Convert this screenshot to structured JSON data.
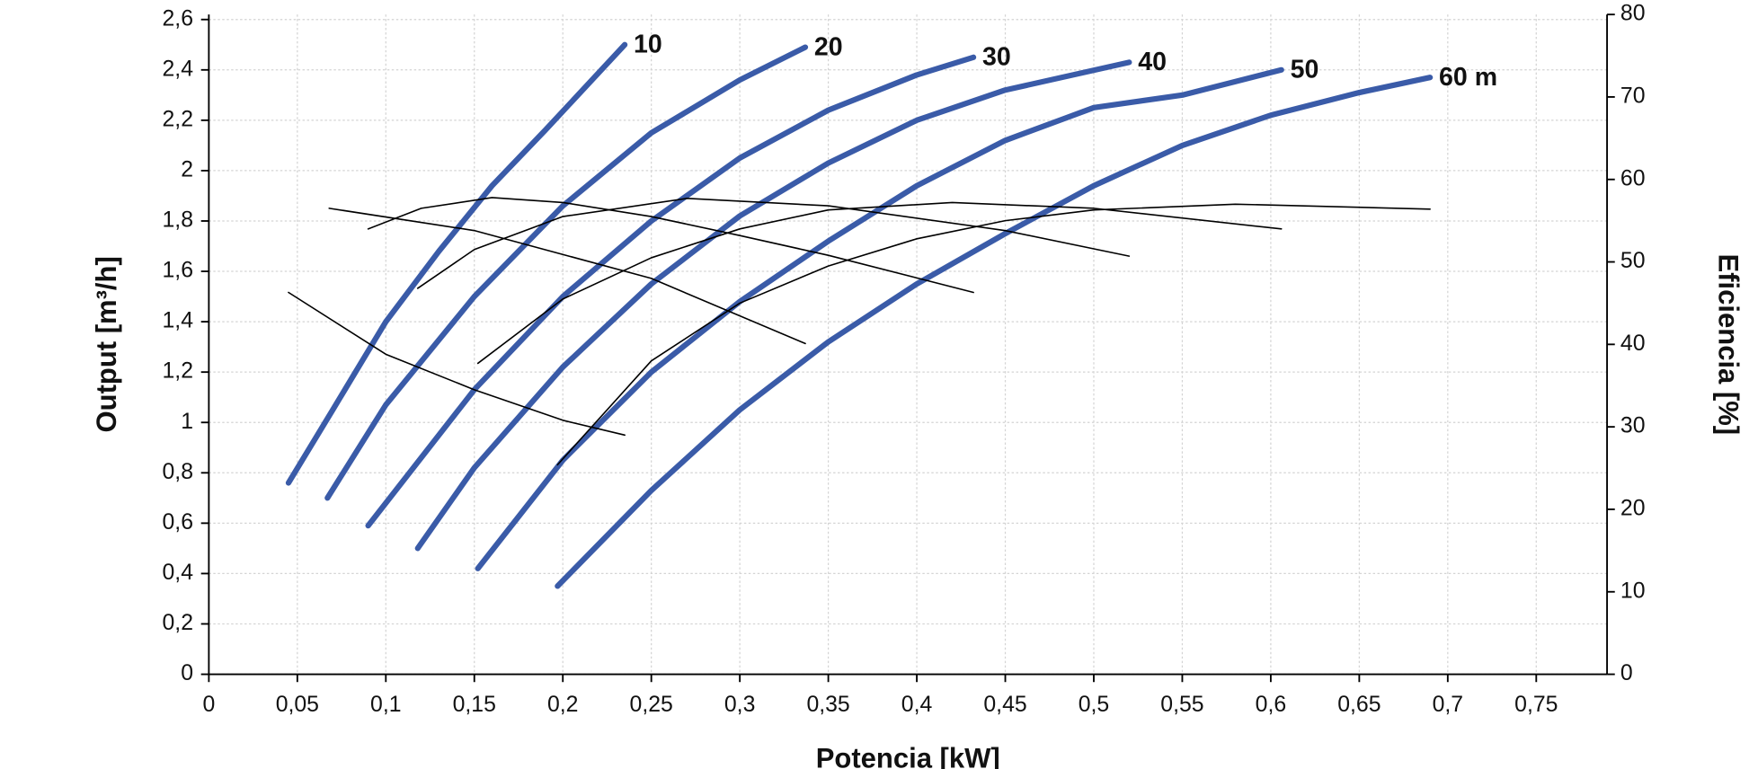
{
  "chart_data": {
    "type": "line",
    "xlabel": "Potencia [kW]",
    "ylabel": "Output [m³/h]",
    "y2label": "Eficiencia [%]",
    "xlim": [
      0,
      0.79
    ],
    "ylim": [
      0,
      2.62
    ],
    "y2lim": [
      0,
      80
    ],
    "grid": true,
    "xticks": [
      0,
      {
        "value": 0.05,
        "label": "0,05"
      },
      {
        "value": 0.1,
        "label": "0,1"
      },
      {
        "value": 0.15,
        "label": "0,15"
      },
      {
        "value": 0.2,
        "label": "0,2"
      },
      {
        "value": 0.25,
        "label": "0,25"
      },
      {
        "value": 0.3,
        "label": "0,3"
      },
      {
        "value": 0.35,
        "label": "0,35"
      },
      {
        "value": 0.4,
        "label": "0,4"
      },
      {
        "value": 0.45,
        "label": "0,45"
      },
      {
        "value": 0.5,
        "label": "0,5"
      },
      {
        "value": 0.55,
        "label": "0,55"
      },
      {
        "value": 0.6,
        "label": "0,6"
      },
      {
        "value": 0.65,
        "label": "0,65"
      },
      {
        "value": 0.7,
        "label": "0,7"
      },
      {
        "value": 0.75,
        "label": "0,75"
      }
    ],
    "yticks": [
      0,
      {
        "value": 0.2,
        "label": "0,2"
      },
      {
        "value": 0.4,
        "label": "0,4"
      },
      {
        "value": 0.6,
        "label": "0,6"
      },
      {
        "value": 0.8,
        "label": "0,8"
      },
      1,
      {
        "value": 1.2,
        "label": "1,2"
      },
      {
        "value": 1.4,
        "label": "1,4"
      },
      {
        "value": 1.6,
        "label": "1,6"
      },
      {
        "value": 1.8,
        "label": "1,8"
      },
      2,
      {
        "value": 2.2,
        "label": "2,2"
      },
      {
        "value": 2.4,
        "label": "2,4"
      },
      {
        "value": 2.6,
        "label": "2,6"
      }
    ],
    "y2ticks": [
      0,
      10,
      20,
      30,
      40,
      50,
      60,
      70,
      80
    ],
    "series": [
      {
        "name": "10",
        "color": "#3a5ba8",
        "x": [
          0.045,
          0.07,
          0.1,
          0.13,
          0.16,
          0.19,
          0.235
        ],
        "values": [
          0.76,
          1.05,
          1.4,
          1.68,
          1.94,
          2.16,
          2.5
        ]
      },
      {
        "name": "20",
        "color": "#3a5ba8",
        "x": [
          0.067,
          0.1,
          0.15,
          0.2,
          0.25,
          0.3,
          0.337
        ],
        "values": [
          0.7,
          1.07,
          1.5,
          1.86,
          2.15,
          2.36,
          2.49
        ]
      },
      {
        "name": "30",
        "color": "#3a5ba8",
        "x": [
          0.09,
          0.15,
          0.2,
          0.25,
          0.3,
          0.35,
          0.4,
          0.432
        ],
        "values": [
          0.59,
          1.13,
          1.5,
          1.8,
          2.05,
          2.24,
          2.38,
          2.45
        ]
      },
      {
        "name": "40",
        "color": "#3a5ba8",
        "x": [
          0.118,
          0.15,
          0.2,
          0.25,
          0.3,
          0.35,
          0.4,
          0.45,
          0.52
        ],
        "values": [
          0.5,
          0.82,
          1.22,
          1.55,
          1.82,
          2.03,
          2.2,
          2.32,
          2.43
        ]
      },
      {
        "name": "50",
        "color": "#3a5ba8",
        "x": [
          0.152,
          0.2,
          0.25,
          0.3,
          0.35,
          0.4,
          0.45,
          0.5,
          0.55,
          0.606
        ],
        "values": [
          0.42,
          0.85,
          1.2,
          1.48,
          1.72,
          1.94,
          2.12,
          2.25,
          2.3,
          2.4
        ]
      },
      {
        "name": "60 m",
        "color": "#3a5ba8",
        "x": [
          0.197,
          0.25,
          0.3,
          0.35,
          0.4,
          0.45,
          0.5,
          0.55,
          0.6,
          0.65,
          0.69
        ],
        "values": [
          0.35,
          0.73,
          1.05,
          1.32,
          1.55,
          1.75,
          1.94,
          2.1,
          2.22,
          2.31,
          2.37
        ]
      },
      {
        "axis": "y2",
        "color": "#000000",
        "x": [
          0.045,
          0.1,
          0.15,
          0.2,
          0.235
        ],
        "values": [
          46.3,
          38.8,
          34.5,
          30.8,
          29
        ]
      },
      {
        "axis": "y2",
        "color": "#000000",
        "x": [
          0.068,
          0.15,
          0.25,
          0.337
        ],
        "values": [
          56.5,
          53.8,
          48,
          40.1
        ]
      },
      {
        "axis": "y2",
        "color": "#000000",
        "x": [
          0.09,
          0.12,
          0.16,
          0.2,
          0.25,
          0.3,
          0.35,
          0.432
        ],
        "values": [
          54,
          56.5,
          57.8,
          57.2,
          55.5,
          53.2,
          50.8,
          46.3
        ]
      },
      {
        "axis": "y2",
        "color": "#000000",
        "x": [
          0.118,
          0.15,
          0.2,
          0.27,
          0.35,
          0.45,
          0.52
        ],
        "values": [
          46.8,
          51.5,
          55.5,
          57.7,
          56.8,
          53.8,
          50.7
        ]
      },
      {
        "axis": "y2",
        "color": "#000000",
        "x": [
          0.152,
          0.2,
          0.25,
          0.3,
          0.35,
          0.42,
          0.5,
          0.606
        ],
        "values": [
          37.7,
          45.5,
          50.5,
          54,
          56.3,
          57.2,
          56.5,
          54
        ]
      },
      {
        "axis": "y2",
        "color": "#000000",
        "x": [
          0.197,
          0.25,
          0.3,
          0.35,
          0.4,
          0.45,
          0.5,
          0.58,
          0.69
        ],
        "values": [
          25.4,
          38,
          45,
          49.5,
          52.8,
          55,
          56.3,
          57,
          56.4
        ]
      }
    ]
  }
}
